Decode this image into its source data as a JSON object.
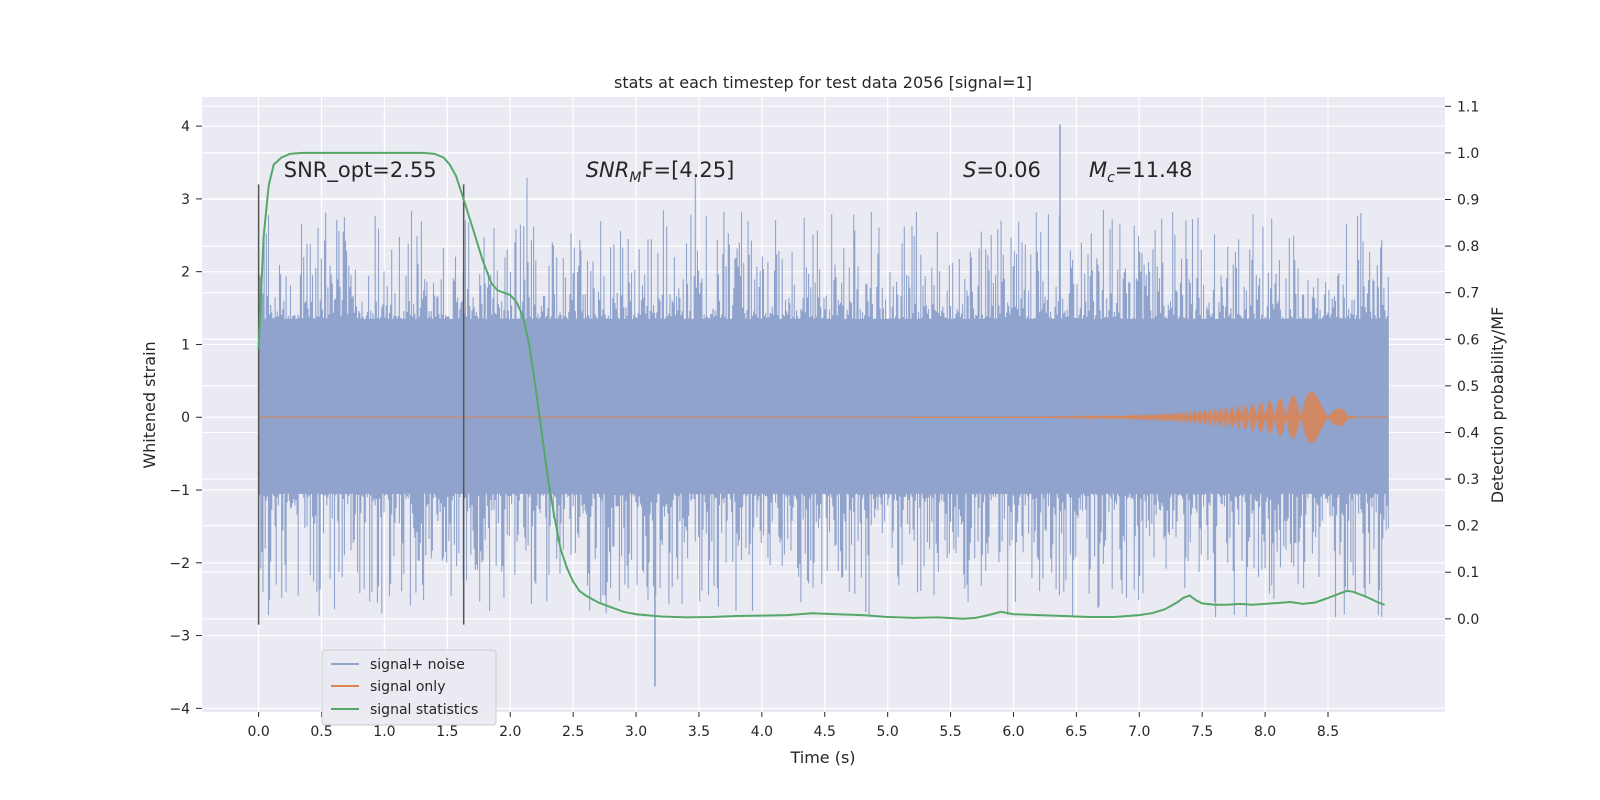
{
  "chart_data": {
    "type": "line",
    "title": "stats at each timestep for test data 2056 [signal=1]",
    "xlabel": "Time (s)",
    "ylabel": "Whitened strain",
    "ylabel_right": "Detection probability/MF",
    "xlim": [
      -0.45,
      9.43
    ],
    "ylim": [
      -4.05,
      4.4
    ],
    "ylim_right": [
      -0.2,
      1.12
    ],
    "xticks": [
      "0.0",
      "0.5",
      "1.0",
      "1.5",
      "2.0",
      "2.5",
      "3.0",
      "3.5",
      "4.0",
      "4.5",
      "5.0",
      "5.5",
      "6.0",
      "6.5",
      "7.0",
      "7.5",
      "8.0",
      "8.5"
    ],
    "xtick_values": [
      0,
      0.5,
      1,
      1.5,
      2,
      2.5,
      3,
      3.5,
      4,
      4.5,
      5,
      5.5,
      6,
      6.5,
      7,
      7.5,
      8,
      8.5
    ],
    "yticks_left": [
      "4",
      "3",
      "2",
      "1",
      "0",
      "−1",
      "−2",
      "−3",
      "−4"
    ],
    "ytick_left_values": [
      4,
      3,
      2,
      1,
      0,
      -1,
      -2,
      -3,
      -4
    ],
    "yticks_right": [
      "1.1",
      "1.0",
      "0.9",
      "0.8",
      "0.7",
      "0.6",
      "0.5",
      "0.4",
      "0.3",
      "0.2",
      "0.1",
      "0.0"
    ],
    "ytick_right_values": [
      1.1,
      1.0,
      0.9,
      0.8,
      0.7,
      0.6,
      0.5,
      0.4,
      0.3,
      0.2,
      0.1,
      0.0
    ],
    "vlines_x": [
      0.0,
      1.63
    ],
    "vlines_y": [
      -2.85,
      3.2
    ],
    "annotations": [
      {
        "id": "snr-opt",
        "text": "SNR_opt=2.55",
        "x": 0.2,
        "y": 3.3
      },
      {
        "id": "snr-mf",
        "pre": "SNR",
        "sub": "M",
        "post": "F=[4.25]",
        "x": 2.6,
        "y": 3.3
      },
      {
        "id": "s-val",
        "pre": "S",
        "post": "=0.06",
        "x": 5.6,
        "y": 3.3
      },
      {
        "id": "mc-val",
        "pre": "M",
        "sub": "c",
        "post": "=11.48",
        "x": 6.6,
        "y": 3.3
      }
    ],
    "series": [
      {
        "name": "signal+ noise",
        "color": "#8fa3cc",
        "axis": "left",
        "x_range": [
          0.0,
          8.98
        ],
        "band": [
          -1.05,
          1.35
        ],
        "peak_max": 4.02,
        "peak_min": -3.7
      },
      {
        "name": "signal only",
        "color": "#dd8452",
        "axis": "left",
        "x_range": [
          0.0,
          8.98
        ],
        "chirp_peak_x": 8.65,
        "chirp_amp": 0.5
      },
      {
        "name": "signal statistics",
        "color": "#55a868",
        "axis": "right",
        "x": [
          0.0,
          0.04,
          0.08,
          0.12,
          0.18,
          0.25,
          0.35,
          0.5,
          0.7,
          0.9,
          1.1,
          1.3,
          1.4,
          1.47,
          1.52,
          1.57,
          1.63,
          1.7,
          1.78,
          1.85,
          1.9,
          1.95,
          2.0,
          2.05,
          2.1,
          2.15,
          2.2,
          2.25,
          2.3,
          2.35,
          2.4,
          2.45,
          2.5,
          2.55,
          2.6,
          2.7,
          2.8,
          2.9,
          3.0,
          3.2,
          3.4,
          3.6,
          3.8,
          4.0,
          4.2,
          4.4,
          4.6,
          4.8,
          5.0,
          5.2,
          5.4,
          5.6,
          5.7,
          5.8,
          5.9,
          6.0,
          6.2,
          6.4,
          6.6,
          6.8,
          7.0,
          7.1,
          7.2,
          7.3,
          7.35,
          7.4,
          7.45,
          7.5,
          7.6,
          7.7,
          7.8,
          7.9,
          8.0,
          8.1,
          8.2,
          8.3,
          8.4,
          8.5,
          8.6,
          8.65,
          8.7,
          8.8,
          8.9,
          8.95
        ],
        "y": [
          0.58,
          0.82,
          0.93,
          0.975,
          0.99,
          0.998,
          1.0,
          1.0,
          1.0,
          1.0,
          1.0,
          1.0,
          0.998,
          0.99,
          0.975,
          0.95,
          0.9,
          0.84,
          0.77,
          0.72,
          0.705,
          0.7,
          0.695,
          0.68,
          0.65,
          0.59,
          0.5,
          0.4,
          0.3,
          0.22,
          0.15,
          0.11,
          0.08,
          0.06,
          0.05,
          0.035,
          0.025,
          0.015,
          0.01,
          0.005,
          0.003,
          0.004,
          0.006,
          0.007,
          0.008,
          0.012,
          0.01,
          0.008,
          0.004,
          0.002,
          0.003,
          0.0,
          0.002,
          0.008,
          0.015,
          0.01,
          0.008,
          0.006,
          0.004,
          0.004,
          0.008,
          0.012,
          0.02,
          0.035,
          0.045,
          0.05,
          0.04,
          0.033,
          0.03,
          0.03,
          0.032,
          0.03,
          0.032,
          0.034,
          0.036,
          0.032,
          0.035,
          0.045,
          0.055,
          0.06,
          0.058,
          0.048,
          0.035,
          0.03
        ]
      }
    ],
    "legend": {
      "placement": "lower-left",
      "entries": [
        "signal+ noise",
        "signal only",
        "signal statistics"
      ]
    },
    "grid": true
  }
}
